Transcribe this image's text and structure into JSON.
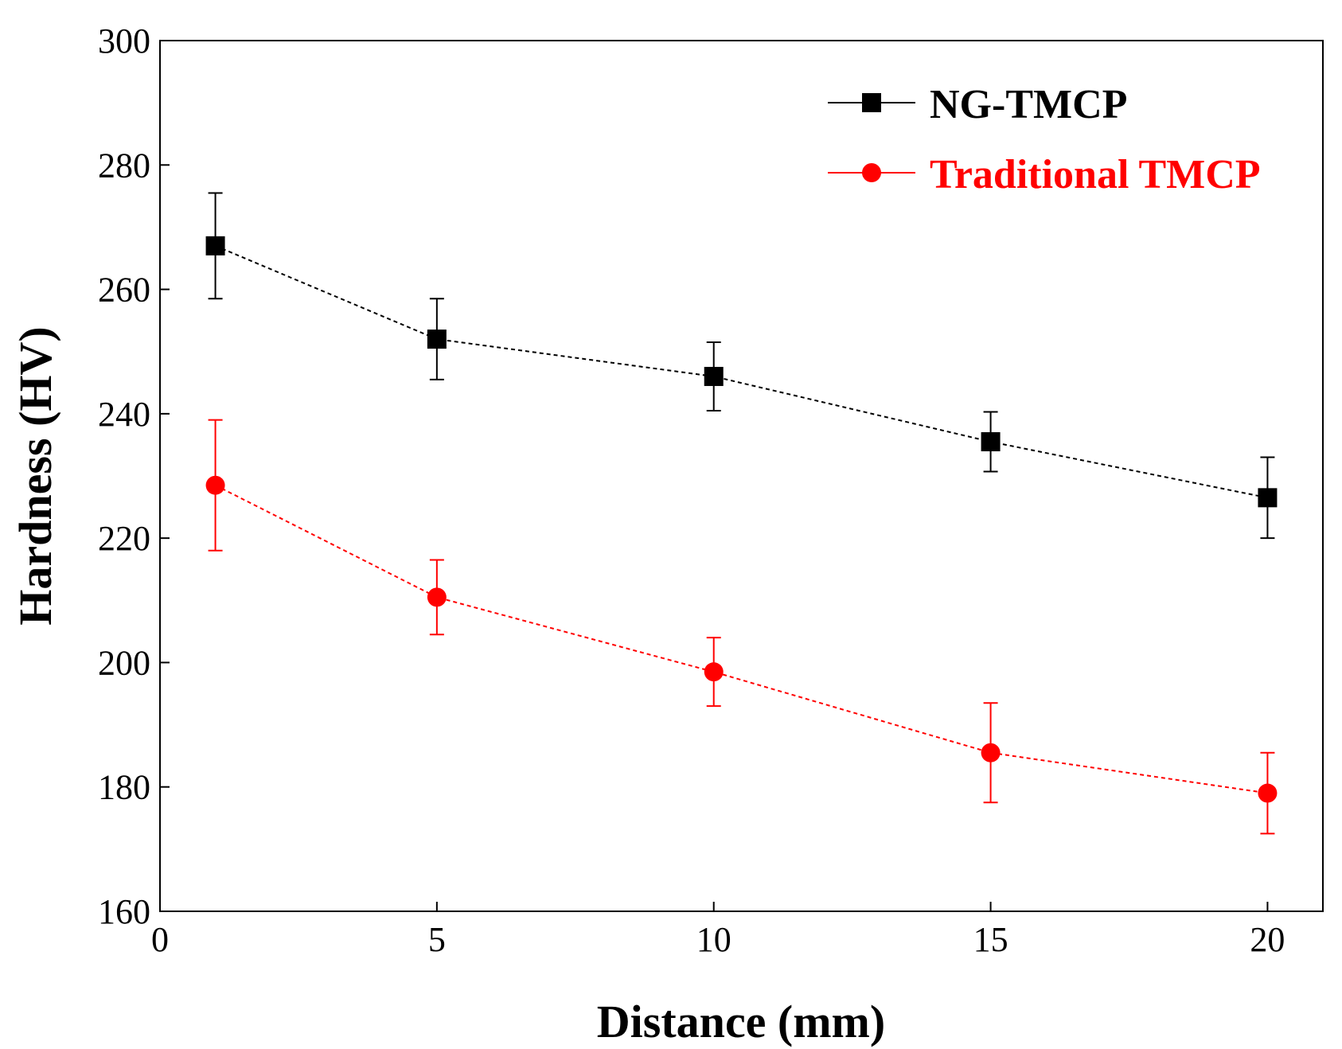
{
  "chart_data": {
    "type": "line",
    "title": "",
    "xlabel": "Distance (mm)",
    "ylabel": "Hardness (HV)",
    "xlim": [
      0,
      21
    ],
    "ylim": [
      160,
      300
    ],
    "xticks": [
      0,
      5,
      10,
      15,
      20
    ],
    "xtick_labels": [
      "0",
      "5",
      "10",
      "15",
      "20"
    ],
    "yticks": [
      160,
      180,
      200,
      220,
      240,
      260,
      280,
      300
    ],
    "ytick_labels": [
      "160",
      "180",
      "200",
      "220",
      "240",
      "260",
      "280",
      "300"
    ],
    "grid": false,
    "legend_position": "top-right",
    "series": [
      {
        "name": "NG-TMCP",
        "color": "#000000",
        "marker": "square",
        "x": [
          1,
          5,
          10,
          15,
          20
        ],
        "y": [
          267,
          252,
          246,
          235.5,
          226.5
        ],
        "error": [
          8.5,
          6.5,
          5.5,
          4.8,
          6.5
        ]
      },
      {
        "name": "Traditional TMCP",
        "color": "#ff0000",
        "marker": "circle",
        "x": [
          1,
          5,
          10,
          15,
          20
        ],
        "y": [
          228.5,
          210.5,
          198.5,
          185.5,
          179
        ],
        "error": [
          10.5,
          6,
          5.5,
          8,
          6.5
        ]
      }
    ]
  }
}
